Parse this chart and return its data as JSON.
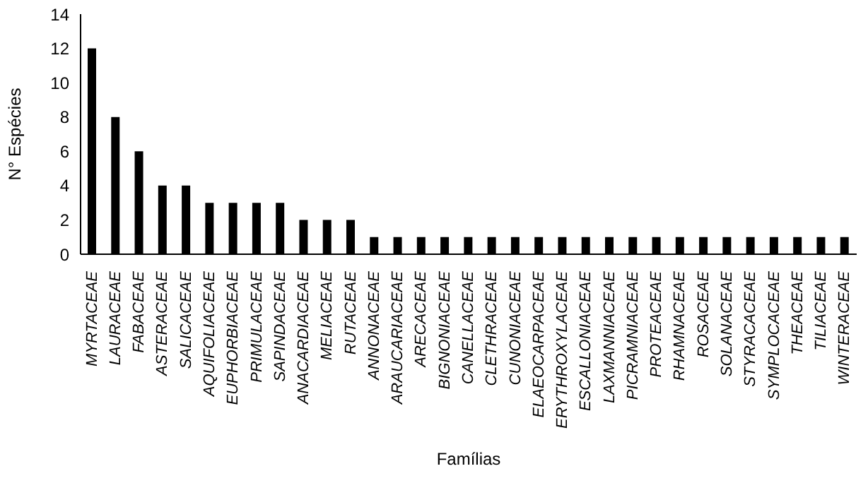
{
  "chart_data": {
    "type": "bar",
    "xlabel": "Famílias",
    "ylabel": "N° Espécies",
    "categories": [
      "MYRTACEAE",
      "LAURACEAE",
      "FABACEAE",
      "ASTERACEAE",
      "SALICACEAE",
      "AQUIFOLIACEAE",
      "EUPHORBIACEAE",
      "PRIMULACEAE",
      "SAPINDACEAE",
      "ANACARDIACEAE",
      "MELIACEAE",
      "RUTACEAE",
      "ANNONACEAE",
      "ARAUCARIACEAE",
      "ARECACEAE",
      "BIGNONIACEAE",
      "CANELLACEAE",
      "CLETHRACEAE",
      "CUNONIACEAE",
      "ELAEOCARPACEAE",
      "ERYTHROXYLACEAE",
      "ESCALLONIACEAE",
      "LAXMANNIACEAE",
      "PICRAMNIACEAE",
      "PROTEACEAE",
      "RHAMNACEAE",
      "ROSACEAE",
      "SOLANACEAE",
      "STYRACACEAE",
      "SYMPLOCACEAE",
      "THEACEAE",
      "TILIACEAE",
      "WINTERACEAE"
    ],
    "values": [
      12,
      8,
      6,
      4,
      4,
      3,
      3,
      3,
      3,
      2,
      2,
      2,
      1,
      1,
      1,
      1,
      1,
      1,
      1,
      1,
      1,
      1,
      1,
      1,
      1,
      1,
      1,
      1,
      1,
      1,
      1,
      1,
      1
    ],
    "color": "#000000",
    "ylim": [
      0,
      14
    ],
    "yticks": [
      0,
      2,
      4,
      6,
      8,
      10,
      12,
      14
    ],
    "grid": false
  }
}
